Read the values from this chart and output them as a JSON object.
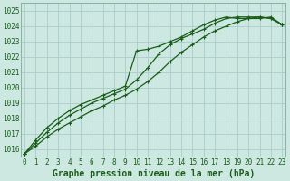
{
  "title": "Graphe pression niveau de la mer (hPa)",
  "bg_color": "#cce8e0",
  "grid_color": "#aacccc",
  "line_color": "#1a5c1a",
  "xlim": [
    -0.3,
    23.3
  ],
  "ylim": [
    1015.5,
    1025.5
  ],
  "yticks": [
    1016,
    1017,
    1018,
    1019,
    1020,
    1021,
    1022,
    1023,
    1024,
    1025
  ],
  "xticks": [
    0,
    1,
    2,
    3,
    4,
    5,
    6,
    7,
    8,
    9,
    10,
    11,
    12,
    13,
    14,
    15,
    16,
    17,
    18,
    19,
    20,
    21,
    22,
    23
  ],
  "series": [
    [
      1015.7,
      1016.2,
      1016.8,
      1017.3,
      1017.7,
      1018.1,
      1018.5,
      1018.8,
      1019.2,
      1019.5,
      1019.9,
      1020.4,
      1021.0,
      1021.7,
      1022.3,
      1022.8,
      1023.3,
      1023.7,
      1024.0,
      1024.3,
      1024.5,
      1024.6,
      1024.5,
      1024.1
    ],
    [
      1015.7,
      1016.4,
      1017.1,
      1017.7,
      1018.2,
      1018.6,
      1019.0,
      1019.3,
      1019.6,
      1019.9,
      1020.5,
      1021.3,
      1022.2,
      1022.8,
      1023.2,
      1023.5,
      1023.8,
      1024.2,
      1024.5,
      1024.6,
      1024.6,
      1024.6,
      1024.5,
      1024.1
    ],
    [
      1015.7,
      1016.6,
      1017.4,
      1018.0,
      1018.5,
      1018.9,
      1019.2,
      1019.5,
      1019.8,
      1020.1,
      1022.4,
      1022.5,
      1022.7,
      1023.0,
      1023.3,
      1023.7,
      1024.1,
      1024.4,
      1024.6,
      1024.5,
      1024.5,
      1024.5,
      1024.6,
      1024.1
    ]
  ],
  "marker": "+",
  "markersize": 3.5,
  "linewidth": 0.9,
  "fontsize_title": 7,
  "fontsize_ticks": 5.5,
  "tick_color": "#1a5c1a",
  "spine_color": "#7aaa9a"
}
